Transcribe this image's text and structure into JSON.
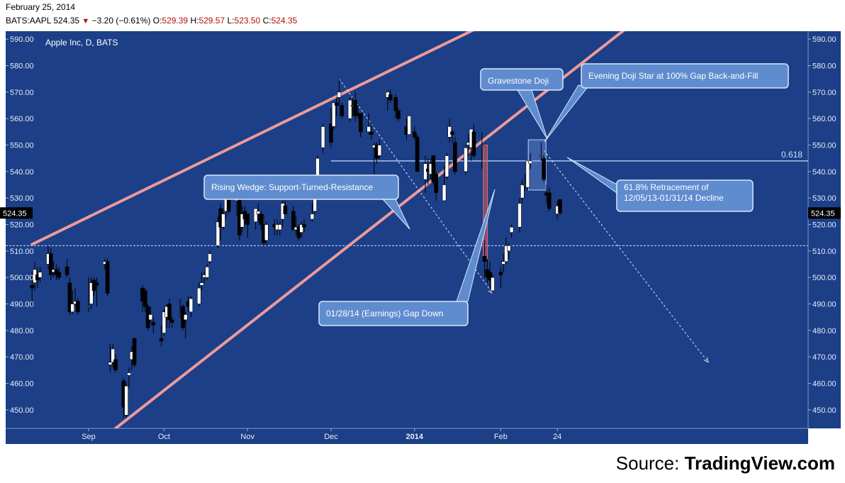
{
  "header": {
    "date": "February 25, 2014",
    "symbol": "BATS:AAPL",
    "last": "524.35",
    "change_icon": "down-triangle-icon",
    "change": "−3.20 (−0.61%)",
    "open_label": "O:",
    "open": "529.39",
    "high_label": "H:",
    "high": "529.57",
    "low_label": "L:",
    "low": "523.50",
    "close_label": "C:",
    "close": "524.35"
  },
  "source": {
    "prefix": "Source: ",
    "name": "TradingView.com"
  },
  "colors": {
    "background": "#1c3f87",
    "up_candle": "#ffffff",
    "down_candle": "#000000",
    "wedge": "#ec9a9a",
    "price_red": "#b31010"
  },
  "chart_data": {
    "type": "candlestick",
    "title": "Apple Inc, D, BATS",
    "ylim": [
      443,
      593
    ],
    "y_ticks": [
      "590.00",
      "580.00",
      "570.00",
      "560.00",
      "550.00",
      "540.00",
      "530.00",
      "520.00",
      "510.00",
      "500.00",
      "490.00",
      "480.00",
      "470.00",
      "460.00",
      "450.00"
    ],
    "x_ticks": [
      {
        "label": "Sep",
        "date": "2013-09-03"
      },
      {
        "label": "Oct",
        "date": "2013-10-01"
      },
      {
        "label": "Nov",
        "date": "2013-11-01"
      },
      {
        "label": "Dec",
        "date": "2013-12-02"
      },
      {
        "label": "2014",
        "date": "2014-01-02",
        "bold": true
      },
      {
        "label": "Feb",
        "date": "2014-02-03"
      },
      {
        "label": "24",
        "date": "2014-02-24"
      }
    ],
    "last_price_label": "524.35",
    "candles": [
      {
        "d": "2013-08-13",
        "o": 497,
        "h": 502,
        "l": 489,
        "c": 496
      },
      {
        "d": "2013-08-14",
        "o": 498,
        "h": 506,
        "l": 495,
        "c": 503
      },
      {
        "d": "2013-08-15",
        "o": 501,
        "h": 504,
        "l": 496,
        "c": 499
      },
      {
        "d": "2013-08-16",
        "o": 500,
        "h": 504,
        "l": 498,
        "c": 502
      },
      {
        "d": "2013-08-19",
        "o": 505,
        "h": 512,
        "l": 503,
        "c": 509
      },
      {
        "d": "2013-08-20",
        "o": 509,
        "h": 511,
        "l": 499,
        "c": 501
      },
      {
        "d": "2013-08-21",
        "o": 502,
        "h": 506,
        "l": 500,
        "c": 503
      },
      {
        "d": "2013-08-22",
        "o": 503,
        "h": 505,
        "l": 499,
        "c": 501
      },
      {
        "d": "2013-08-23",
        "o": 502,
        "h": 504,
        "l": 499,
        "c": 500
      },
      {
        "d": "2013-08-26",
        "o": 504,
        "h": 507,
        "l": 500,
        "c": 501
      },
      {
        "d": "2013-08-27",
        "o": 498,
        "h": 500,
        "l": 486,
        "c": 487
      },
      {
        "d": "2013-08-28",
        "o": 487,
        "h": 495,
        "l": 486,
        "c": 490
      },
      {
        "d": "2013-08-29",
        "o": 490,
        "h": 496,
        "l": 489,
        "c": 491
      },
      {
        "d": "2013-08-30",
        "o": 491,
        "h": 492,
        "l": 486,
        "c": 487
      },
      {
        "d": "2013-09-03",
        "o": 489,
        "h": 500,
        "l": 487,
        "c": 489
      },
      {
        "d": "2013-09-04",
        "o": 490,
        "h": 500,
        "l": 488,
        "c": 498
      },
      {
        "d": "2013-09-05",
        "o": 499,
        "h": 500,
        "l": 493,
        "c": 495
      },
      {
        "d": "2013-09-06",
        "o": 498,
        "h": 500,
        "l": 489,
        "c": 497
      },
      {
        "d": "2013-09-09",
        "o": 505,
        "h": 507,
        "l": 503,
        "c": 506
      },
      {
        "d": "2013-09-10",
        "o": 506,
        "h": 507,
        "l": 493,
        "c": 494
      },
      {
        "d": "2013-09-11",
        "o": 467,
        "h": 475,
        "l": 464,
        "c": 468
      },
      {
        "d": "2013-09-12",
        "o": 468,
        "h": 475,
        "l": 466,
        "c": 473
      },
      {
        "d": "2013-09-13",
        "o": 469,
        "h": 471,
        "l": 464,
        "c": 465
      },
      {
        "d": "2013-09-16",
        "o": 461,
        "h": 462,
        "l": 447,
        "c": 451
      },
      {
        "d": "2013-09-17",
        "o": 448,
        "h": 460,
        "l": 447,
        "c": 459
      },
      {
        "d": "2013-09-18",
        "o": 463,
        "h": 466,
        "l": 458,
        "c": 464
      },
      {
        "d": "2013-09-19",
        "o": 469,
        "h": 474,
        "l": 465,
        "c": 472
      },
      {
        "d": "2013-09-20",
        "o": 477,
        "h": 477,
        "l": 466,
        "c": 467
      },
      {
        "d": "2013-09-23",
        "o": 496,
        "h": 497,
        "l": 487,
        "c": 491
      },
      {
        "d": "2013-09-24",
        "o": 495,
        "h": 496,
        "l": 487,
        "c": 489
      },
      {
        "d": "2013-09-25",
        "o": 489,
        "h": 490,
        "l": 480,
        "c": 481
      },
      {
        "d": "2013-09-26",
        "o": 484,
        "h": 489,
        "l": 483,
        "c": 486
      },
      {
        "d": "2013-09-27",
        "o": 483,
        "h": 485,
        "l": 479,
        "c": 482
      },
      {
        "d": "2013-09-30",
        "o": 477,
        "h": 482,
        "l": 474,
        "c": 476
      },
      {
        "d": "2013-10-01",
        "o": 479,
        "h": 488,
        "l": 478,
        "c": 487
      },
      {
        "d": "2013-10-02",
        "o": 485,
        "h": 490,
        "l": 481,
        "c": 489
      },
      {
        "d": "2013-10-03",
        "o": 490,
        "h": 492,
        "l": 481,
        "c": 484
      },
      {
        "d": "2013-10-04",
        "o": 484,
        "h": 485,
        "l": 481,
        "c": 483
      },
      {
        "d": "2013-10-07",
        "o": 486,
        "h": 492,
        "l": 485,
        "c": 486
      },
      {
        "d": "2013-10-08",
        "o": 489,
        "h": 490,
        "l": 480,
        "c": 481
      },
      {
        "d": "2013-10-09",
        "o": 484,
        "h": 487,
        "l": 477,
        "c": 486
      },
      {
        "d": "2013-10-10",
        "o": 491,
        "h": 493,
        "l": 487,
        "c": 489
      },
      {
        "d": "2013-10-11",
        "o": 487,
        "h": 493,
        "l": 485,
        "c": 492
      },
      {
        "d": "2013-10-14",
        "o": 490,
        "h": 498,
        "l": 489,
        "c": 496
      },
      {
        "d": "2013-10-15",
        "o": 497,
        "h": 502,
        "l": 495,
        "c": 498
      },
      {
        "d": "2013-10-16",
        "o": 500,
        "h": 502,
        "l": 498,
        "c": 501
      },
      {
        "d": "2013-10-17",
        "o": 500,
        "h": 505,
        "l": 499,
        "c": 504
      },
      {
        "d": "2013-10-18",
        "o": 506,
        "h": 510,
        "l": 505,
        "c": 509
      },
      {
        "d": "2013-10-21",
        "o": 512,
        "h": 523,
        "l": 511,
        "c": 521
      },
      {
        "d": "2013-10-22",
        "o": 526,
        "h": 528,
        "l": 514,
        "c": 519
      },
      {
        "d": "2013-10-23",
        "o": 519,
        "h": 526,
        "l": 518,
        "c": 524
      },
      {
        "d": "2013-10-24",
        "o": 525,
        "h": 532,
        "l": 522,
        "c": 531
      },
      {
        "d": "2013-10-25",
        "o": 531,
        "h": 533,
        "l": 524,
        "c": 525
      },
      {
        "d": "2013-10-28",
        "o": 529,
        "h": 531,
        "l": 523,
        "c": 530
      },
      {
        "d": "2013-10-29",
        "o": 536,
        "h": 539,
        "l": 514,
        "c": 516
      },
      {
        "d": "2013-10-30",
        "o": 519,
        "h": 527,
        "l": 517,
        "c": 524
      },
      {
        "d": "2013-10-31",
        "o": 525,
        "h": 527,
        "l": 520,
        "c": 522
      },
      {
        "d": "2013-11-01",
        "o": 524,
        "h": 524,
        "l": 515,
        "c": 520
      },
      {
        "d": "2013-11-04",
        "o": 521,
        "h": 526,
        "l": 518,
        "c": 526
      },
      {
        "d": "2013-11-05",
        "o": 524,
        "h": 528,
        "l": 521,
        "c": 525
      },
      {
        "d": "2013-11-06",
        "o": 524,
        "h": 525,
        "l": 518,
        "c": 520
      },
      {
        "d": "2013-11-07",
        "o": 520,
        "h": 524,
        "l": 512,
        "c": 513
      },
      {
        "d": "2013-11-08",
        "o": 514,
        "h": 521,
        "l": 512,
        "c": 520
      },
      {
        "d": "2013-11-11",
        "o": 520,
        "h": 522,
        "l": 516,
        "c": 519
      },
      {
        "d": "2013-11-12",
        "o": 518,
        "h": 522,
        "l": 516,
        "c": 520
      },
      {
        "d": "2013-11-13",
        "o": 518,
        "h": 521,
        "l": 516,
        "c": 520
      },
      {
        "d": "2013-11-14",
        "o": 522,
        "h": 529,
        "l": 519,
        "c": 528
      },
      {
        "d": "2013-11-15",
        "o": 527,
        "h": 529,
        "l": 524,
        "c": 524
      },
      {
        "d": "2013-11-18",
        "o": 525,
        "h": 527,
        "l": 518,
        "c": 518
      },
      {
        "d": "2013-11-19",
        "o": 518,
        "h": 523,
        "l": 516,
        "c": 519
      },
      {
        "d": "2013-11-20",
        "o": 519,
        "h": 520,
        "l": 514,
        "c": 515
      },
      {
        "d": "2013-11-21",
        "o": 517,
        "h": 521,
        "l": 515,
        "c": 520
      },
      {
        "d": "2013-11-22",
        "o": 520,
        "h": 522,
        "l": 517,
        "c": 519
      },
      {
        "d": "2013-11-25",
        "o": 522,
        "h": 528,
        "l": 521,
        "c": 524
      },
      {
        "d": "2013-11-26",
        "o": 525,
        "h": 535,
        "l": 524,
        "c": 534
      },
      {
        "d": "2013-11-27",
        "o": 537,
        "h": 546,
        "l": 536,
        "c": 545
      },
      {
        "d": "2013-11-29",
        "o": 549,
        "h": 558,
        "l": 547,
        "c": 557
      },
      {
        "d": "2013-12-02",
        "o": 558,
        "h": 564,
        "l": 549,
        "c": 551
      },
      {
        "d": "2013-12-03",
        "o": 557,
        "h": 566,
        "l": 556,
        "c": 566
      },
      {
        "d": "2013-12-04",
        "o": 566,
        "h": 568,
        "l": 561,
        "c": 565
      },
      {
        "d": "2013-12-05",
        "o": 568,
        "h": 575,
        "l": 565,
        "c": 570
      },
      {
        "d": "2013-12-06",
        "o": 565,
        "h": 566,
        "l": 560,
        "c": 561
      },
      {
        "d": "2013-12-09",
        "o": 560,
        "h": 568,
        "l": 559,
        "c": 567
      },
      {
        "d": "2013-12-10",
        "o": 565,
        "h": 568,
        "l": 561,
        "c": 565
      },
      {
        "d": "2013-12-11",
        "o": 567,
        "h": 570,
        "l": 559,
        "c": 561
      },
      {
        "d": "2013-12-12",
        "o": 562,
        "h": 565,
        "l": 560,
        "c": 561
      },
      {
        "d": "2013-12-13",
        "o": 562,
        "h": 562,
        "l": 553,
        "c": 555
      },
      {
        "d": "2013-12-16",
        "o": 555,
        "h": 562,
        "l": 554,
        "c": 557
      },
      {
        "d": "2013-12-17",
        "o": 555,
        "h": 558,
        "l": 552,
        "c": 554
      },
      {
        "d": "2013-12-18",
        "o": 549,
        "h": 551,
        "l": 539,
        "c": 550
      },
      {
        "d": "2013-12-19",
        "o": 550,
        "h": 551,
        "l": 543,
        "c": 545
      },
      {
        "d": "2013-12-20",
        "o": 546,
        "h": 552,
        "l": 545,
        "c": 550
      },
      {
        "d": "2013-12-23",
        "o": 568,
        "h": 570,
        "l": 563,
        "c": 570
      },
      {
        "d": "2013-12-24",
        "o": 569,
        "h": 571,
        "l": 566,
        "c": 567
      },
      {
        "d": "2013-12-26",
        "o": 568,
        "h": 569,
        "l": 560,
        "c": 563
      },
      {
        "d": "2013-12-27",
        "o": 563,
        "h": 564,
        "l": 559,
        "c": 560
      },
      {
        "d": "2013-12-30",
        "o": 557,
        "h": 560,
        "l": 552,
        "c": 554
      },
      {
        "d": "2013-12-31",
        "o": 554,
        "h": 561,
        "l": 554,
        "c": 561
      },
      {
        "d": "2014-01-02",
        "o": 555,
        "h": 557,
        "l": 552,
        "c": 553
      },
      {
        "d": "2014-01-03",
        "o": 553,
        "h": 554,
        "l": 540,
        "c": 540
      },
      {
        "d": "2014-01-06",
        "o": 537,
        "h": 546,
        "l": 532,
        "c": 543
      },
      {
        "d": "2014-01-07",
        "o": 541,
        "h": 545,
        "l": 535,
        "c": 540
      },
      {
        "d": "2014-01-08",
        "o": 539,
        "h": 545,
        "l": 537,
        "c": 543
      },
      {
        "d": "2014-01-09",
        "o": 546,
        "h": 546,
        "l": 535,
        "c": 536
      },
      {
        "d": "2014-01-10",
        "o": 539,
        "h": 540,
        "l": 529,
        "c": 532
      },
      {
        "d": "2014-01-13",
        "o": 529,
        "h": 542,
        "l": 529,
        "c": 535
      },
      {
        "d": "2014-01-14",
        "o": 538,
        "h": 547,
        "l": 537,
        "c": 546
      },
      {
        "d": "2014-01-15",
        "o": 553,
        "h": 560,
        "l": 551,
        "c": 557
      },
      {
        "d": "2014-01-16",
        "o": 555,
        "h": 556,
        "l": 551,
        "c": 554
      },
      {
        "d": "2014-01-17",
        "o": 551,
        "h": 553,
        "l": 539,
        "c": 540
      },
      {
        "d": "2014-01-21",
        "o": 540,
        "h": 550,
        "l": 539,
        "c": 549
      },
      {
        "d": "2014-01-22",
        "o": 550,
        "h": 554,
        "l": 546,
        "c": 551
      },
      {
        "d": "2014-01-23",
        "o": 549,
        "h": 556,
        "l": 544,
        "c": 556
      },
      {
        "d": "2014-01-24",
        "o": 555,
        "h": 558,
        "l": 545,
        "c": 546
      },
      {
        "d": "2014-01-27",
        "o": 550,
        "h": 555,
        "l": 541,
        "c": 550
      },
      {
        "d": "2014-01-28",
        "o": 508,
        "h": 514,
        "l": 500,
        "c": 506
      },
      {
        "d": "2014-01-29",
        "o": 503,
        "h": 507,
        "l": 498,
        "c": 500
      },
      {
        "d": "2014-01-30",
        "o": 502,
        "h": 506,
        "l": 496,
        "c": 499
      },
      {
        "d": "2014-01-31",
        "o": 495,
        "h": 501,
        "l": 494,
        "c": 500
      },
      {
        "d": "2014-02-03",
        "o": 502,
        "h": 504,
        "l": 496,
        "c": 501
      },
      {
        "d": "2014-02-04",
        "o": 505,
        "h": 509,
        "l": 502,
        "c": 506
      },
      {
        "d": "2014-02-05",
        "o": 506,
        "h": 515,
        "l": 505,
        "c": 512
      },
      {
        "d": "2014-02-06",
        "o": 510,
        "h": 513,
        "l": 507,
        "c": 512
      },
      {
        "d": "2014-02-07",
        "o": 517,
        "h": 520,
        "l": 515,
        "c": 519
      },
      {
        "d": "2014-02-10",
        "o": 519,
        "h": 530,
        "l": 517,
        "c": 528
      },
      {
        "d": "2014-02-11",
        "o": 530,
        "h": 537,
        "l": 528,
        "c": 535
      },
      {
        "d": "2014-02-12",
        "o": 535,
        "h": 539,
        "l": 533,
        "c": 535
      },
      {
        "d": "2014-02-13",
        "o": 534,
        "h": 544,
        "l": 533,
        "c": 544
      },
      {
        "d": "2014-02-14",
        "o": 543,
        "h": 547,
        "l": 541,
        "c": 544
      },
      {
        "d": "2014-02-18",
        "o": 546,
        "h": 551,
        "l": 544,
        "c": 546
      },
      {
        "d": "2014-02-19",
        "o": 545,
        "h": 546,
        "l": 536,
        "c": 537
      },
      {
        "d": "2014-02-20",
        "o": 532,
        "h": 535,
        "l": 528,
        "c": 531
      },
      {
        "d": "2014-02-21",
        "o": 532,
        "h": 534,
        "l": 525,
        "c": 526
      },
      {
        "d": "2014-02-24",
        "o": 524,
        "h": 529,
        "l": 522,
        "c": 527
      },
      {
        "d": "2014-02-25",
        "o": 529.39,
        "h": 529.57,
        "l": 523.5,
        "c": 524.35
      }
    ],
    "support_level": 512,
    "retracement": {
      "label": "0.618",
      "start": "2013-12-02",
      "price": 544
    },
    "wedge_lines": [
      {
        "name": "upper",
        "from": {
          "d": "2013-08-13",
          "p": 512.5
        },
        "to": {
          "d": "2014-01-29",
          "p": 596
        }
      },
      {
        "name": "lower",
        "from": {
          "d": "2013-09-13",
          "p": 443
        },
        "to": {
          "d": "2014-03-24",
          "p": 596
        }
      }
    ],
    "trend_arrows": [
      {
        "from": {
          "d": "2013-12-05",
          "p": 575
        },
        "to": {
          "d": "2014-01-31",
          "p": 494
        }
      },
      {
        "from": {
          "d": "2014-02-19",
          "p": 548
        },
        "to": {
          "d": "2014-04-21",
          "p": 468
        }
      }
    ],
    "gap_box": {
      "from": "2014-01-27",
      "to": "2014-01-28",
      "top": 550,
      "bottom": 507
    },
    "doji_box": {
      "from": "2014-02-14",
      "to": "2014-02-19",
      "top": 552,
      "bottom": 533
    },
    "annotations": [
      {
        "text": "Rising Wedge: Support-Turned-Resistance",
        "anchor": "rising-wedge"
      },
      {
        "text": "Gravestone Doji",
        "anchor": "gravestone"
      },
      {
        "text": "Evening Doji Star at 100% Gap Back-and-Fill",
        "anchor": "evening-star"
      },
      {
        "text": "61.8% Retracement of 12/05/13-01/31/14 Decline",
        "anchor": "retracement"
      },
      {
        "text": "01/28/14 (Earnings) Gap Down",
        "anchor": "gap-down"
      }
    ]
  }
}
